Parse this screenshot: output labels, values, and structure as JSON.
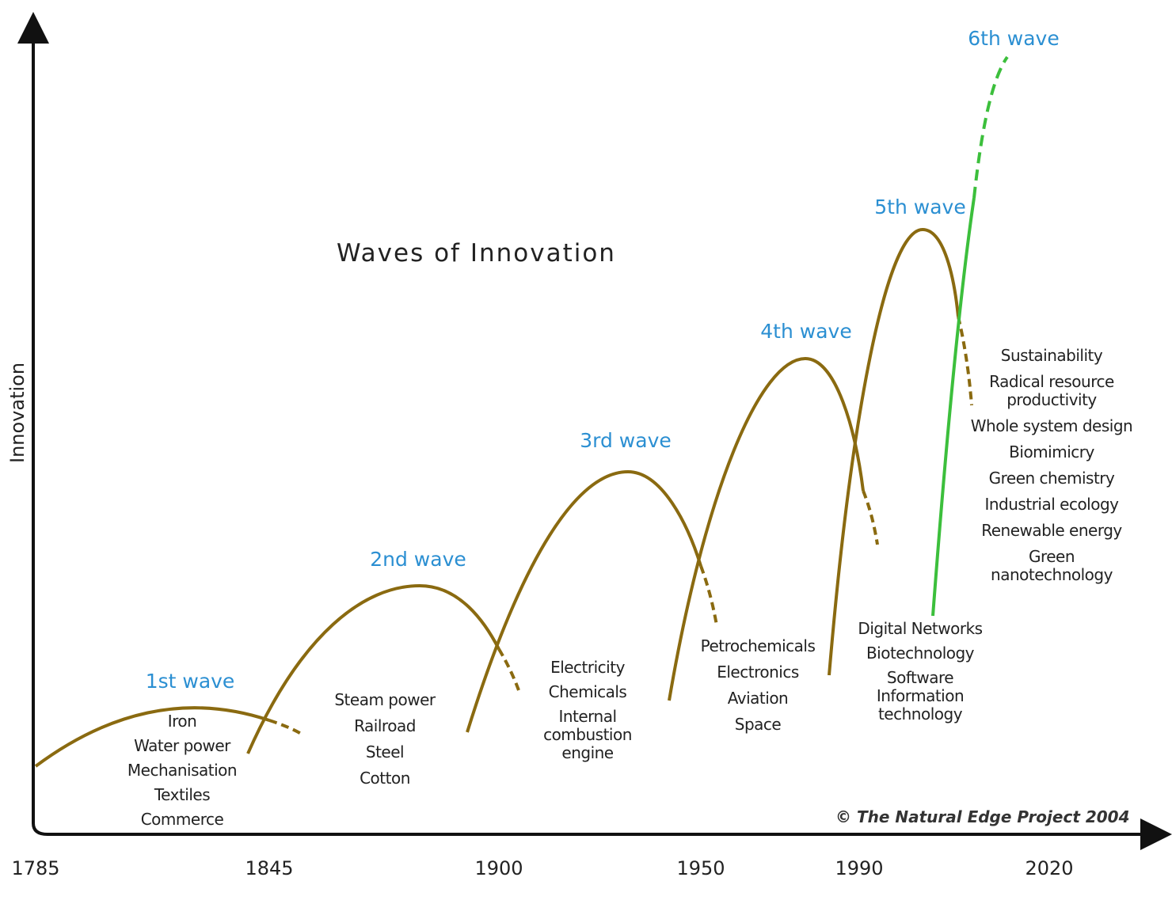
{
  "title": "Waves of Innovation",
  "y_axis_label": "Innovation",
  "x_axis_labels": [
    "1785",
    "1845",
    "1900",
    "1950",
    "1990",
    "2020"
  ],
  "waves": [
    {
      "label": "1st wave",
      "items": [
        "Iron",
        "Water power",
        "Mechanisation",
        "Textiles",
        "Commerce"
      ]
    },
    {
      "label": "2nd wave",
      "items": [
        "Steam power",
        "Railroad",
        "Steel",
        "Cotton"
      ]
    },
    {
      "label": "3rd wave",
      "items": [
        "Electricity",
        "Chemicals",
        "Internal\ncombustion\nengine"
      ]
    },
    {
      "label": "4th wave",
      "items": [
        "Petrochemicals",
        "Electronics",
        "Aviation",
        "Space"
      ]
    },
    {
      "label": "5th wave",
      "items": [
        "Digital Networks",
        "Biotechnology",
        "Software\nInformation\ntechnology"
      ]
    },
    {
      "label": "6th wave",
      "items": [
        "Sustainability",
        "Radical resource\nproductivity",
        "Whole system design",
        "Biomimicry",
        "Green chemistry",
        "Industrial ecology",
        "Renewable energy",
        "Green\nnanotechnology"
      ]
    }
  ],
  "credit": "© The Natural Edge Project 2004"
}
